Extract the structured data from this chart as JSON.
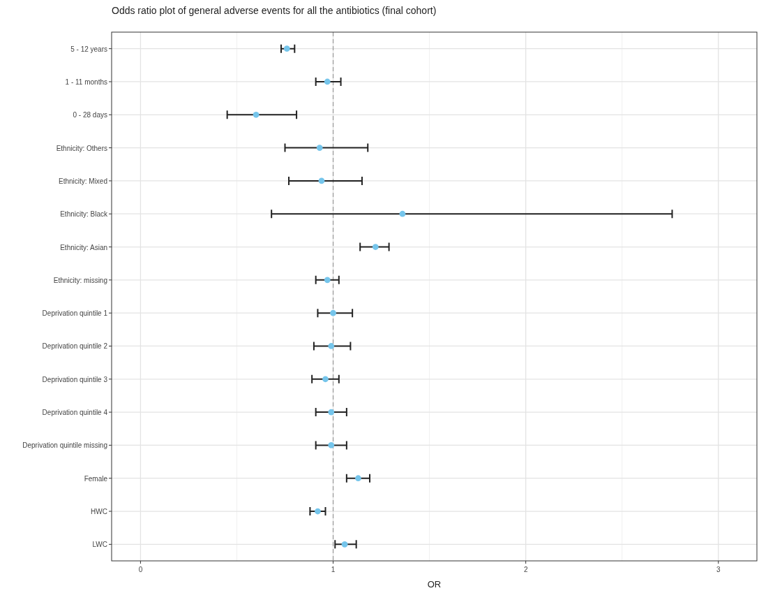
{
  "chart_data": {
    "type": "scatter",
    "orientation": "horizontal",
    "title": "Odds ratio plot of general adverse events for all the antibiotics (final cohort)",
    "xlabel": "OR",
    "categories": [
      "5 - 12 years",
      "1 - 11 months",
      "0 - 28 days",
      "Ethnicity: Others",
      "Ethnicity: Mixed",
      "Ethnicity: Black",
      "Ethnicity: Asian",
      "Ethnicity: missing",
      "Deprivation quintile 1",
      "Deprivation quintile 2",
      "Deprivation quintile 3",
      "Deprivation quintile 4",
      "Deprivation quintile missing",
      "Female",
      "HWC",
      "LWC"
    ],
    "values": [
      0.76,
      0.97,
      0.6,
      0.93,
      0.94,
      1.36,
      1.22,
      0.97,
      1.0,
      0.99,
      0.96,
      0.99,
      0.99,
      1.13,
      0.92,
      1.06
    ],
    "errors": [
      [
        0.73,
        0.8
      ],
      [
        0.91,
        1.04
      ],
      [
        0.45,
        0.81
      ],
      [
        0.75,
        1.18
      ],
      [
        0.77,
        1.15
      ],
      [
        0.68,
        2.76
      ],
      [
        1.14,
        1.29
      ],
      [
        0.91,
        1.03
      ],
      [
        0.92,
        1.1
      ],
      [
        0.9,
        1.09
      ],
      [
        0.89,
        1.03
      ],
      [
        0.91,
        1.07
      ],
      [
        0.91,
        1.07
      ],
      [
        1.07,
        1.19
      ],
      [
        0.88,
        0.96
      ],
      [
        1.01,
        1.12
      ]
    ],
    "color": "#75c5eb",
    "marker": "circle",
    "grid": true,
    "xlim": [
      -0.15,
      3.2
    ],
    "xticks": [
      0,
      {
        "value": 0.5,
        "label": null
      },
      1,
      {
        "value": 1.5,
        "label": null
      },
      2,
      {
        "value": 2.5,
        "label": null
      },
      3
    ],
    "ref_lines": [
      {
        "axis": "x",
        "value": 1,
        "line_style": "dashed",
        "color": "#999999"
      }
    ]
  }
}
